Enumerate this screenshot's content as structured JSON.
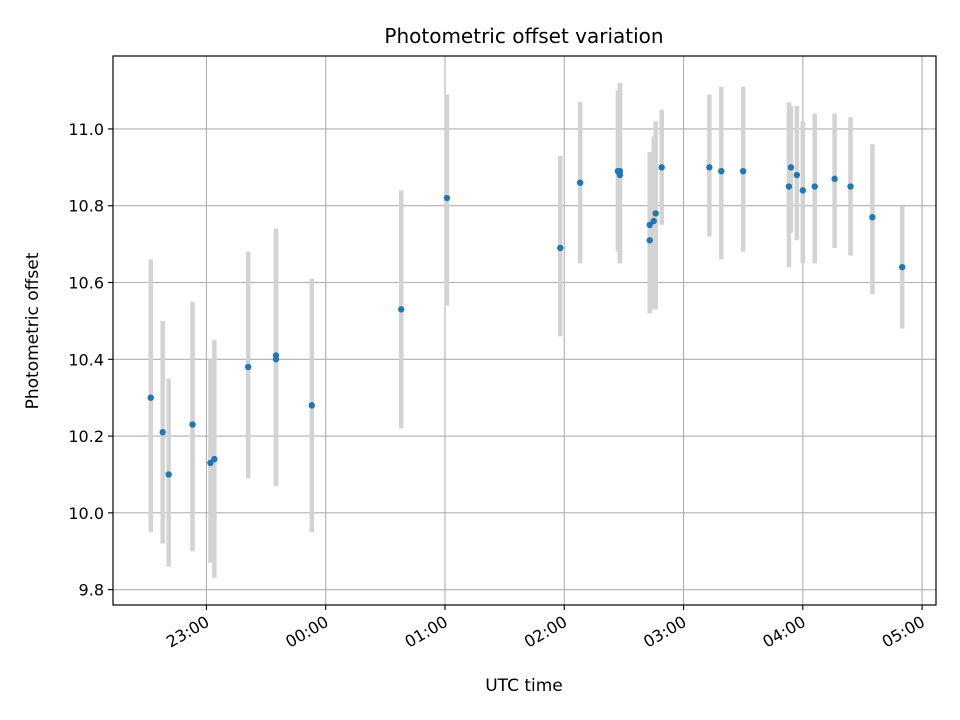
{
  "chart_data": {
    "type": "scatter",
    "title": "Photometric offset variation",
    "xlabel": "UTC time",
    "ylabel": "Photometric offset",
    "x_ticks": [
      "23:00",
      "00:00",
      "01:00",
      "02:00",
      "03:00",
      "04:00",
      "05:00"
    ],
    "y_ticks": [
      "9.8",
      "10.0",
      "10.2",
      "10.4",
      "10.6",
      "10.8",
      "11.0"
    ],
    "xlim": [
      "22:13",
      "05:07"
    ],
    "ylim": [
      9.76,
      11.19
    ],
    "grid": true,
    "colors": {
      "points": "#1f77b4",
      "errorbars": "#d3d3d3",
      "grid": "#b0b0b0"
    },
    "points": [
      {
        "x": "22:32",
        "y": 10.3,
        "err_low": 9.95,
        "err_high": 10.66
      },
      {
        "x": "22:38",
        "y": 10.21,
        "err_low": 9.92,
        "err_high": 10.5
      },
      {
        "x": "22:41",
        "y": 10.1,
        "err_low": 9.86,
        "err_high": 10.35
      },
      {
        "x": "22:53",
        "y": 10.23,
        "err_low": 9.9,
        "err_high": 10.55
      },
      {
        "x": "23:02",
        "y": 10.13,
        "err_low": 9.87,
        "err_high": 10.4
      },
      {
        "x": "23:04",
        "y": 10.14,
        "err_low": 9.83,
        "err_high": 10.45
      },
      {
        "x": "23:21",
        "y": 10.38,
        "err_low": 10.09,
        "err_high": 10.68
      },
      {
        "x": "23:35",
        "y": 10.4,
        "err_low": 10.07,
        "err_high": 10.74
      },
      {
        "x": "23:35",
        "y": 10.41,
        "err_low": 10.07,
        "err_high": 10.74
      },
      {
        "x": "23:53",
        "y": 10.28,
        "err_low": 9.95,
        "err_high": 10.61
      },
      {
        "x": "00:38",
        "y": 10.53,
        "err_low": 10.22,
        "err_high": 10.84
      },
      {
        "x": "01:01",
        "y": 10.82,
        "err_low": 10.54,
        "err_high": 11.09
      },
      {
        "x": "01:58",
        "y": 10.69,
        "err_low": 10.46,
        "err_high": 10.93
      },
      {
        "x": "02:08",
        "y": 10.86,
        "err_low": 10.65,
        "err_high": 11.07
      },
      {
        "x": "02:27",
        "y": 10.89,
        "err_low": 10.68,
        "err_high": 11.1
      },
      {
        "x": "02:28",
        "y": 10.88,
        "err_low": 10.65,
        "err_high": 11.12
      },
      {
        "x": "02:28",
        "y": 10.89,
        "err_low": 10.66,
        "err_high": 11.12
      },
      {
        "x": "02:43",
        "y": 10.71,
        "err_low": 10.52,
        "err_high": 10.91
      },
      {
        "x": "02:43",
        "y": 10.75,
        "err_low": 10.52,
        "err_high": 10.94
      },
      {
        "x": "02:45",
        "y": 10.76,
        "err_low": 10.53,
        "err_high": 10.98
      },
      {
        "x": "02:46",
        "y": 10.78,
        "err_low": 10.53,
        "err_high": 11.02
      },
      {
        "x": "02:49",
        "y": 10.9,
        "err_low": 10.75,
        "err_high": 11.05
      },
      {
        "x": "03:13",
        "y": 10.9,
        "err_low": 10.72,
        "err_high": 11.09
      },
      {
        "x": "03:19",
        "y": 10.89,
        "err_low": 10.66,
        "err_high": 11.11
      },
      {
        "x": "03:30",
        "y": 10.89,
        "err_low": 10.68,
        "err_high": 11.11
      },
      {
        "x": "03:53",
        "y": 10.85,
        "err_low": 10.64,
        "err_high": 11.07
      },
      {
        "x": "03:54",
        "y": 10.9,
        "err_low": 10.73,
        "err_high": 11.06
      },
      {
        "x": "03:57",
        "y": 10.88,
        "err_low": 10.71,
        "err_high": 11.06
      },
      {
        "x": "04:00",
        "y": 10.84,
        "err_low": 10.65,
        "err_high": 11.02
      },
      {
        "x": "04:06",
        "y": 10.85,
        "err_low": 10.65,
        "err_high": 11.04
      },
      {
        "x": "04:16",
        "y": 10.87,
        "err_low": 10.69,
        "err_high": 11.04
      },
      {
        "x": "04:24",
        "y": 10.85,
        "err_low": 10.67,
        "err_high": 11.03
      },
      {
        "x": "04:35",
        "y": 10.77,
        "err_low": 10.57,
        "err_high": 10.96
      },
      {
        "x": "04:50",
        "y": 10.64,
        "err_low": 10.48,
        "err_high": 10.8
      }
    ]
  }
}
